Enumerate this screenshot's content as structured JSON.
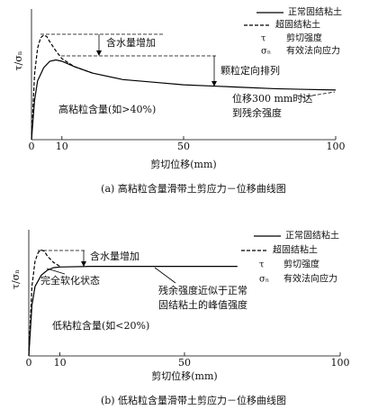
{
  "chart_data": [
    {
      "type": "line",
      "caption": "(a) 高粘粒含量滑带土剪应力－位移曲线图",
      "xlabel": "剪切位移(mm)",
      "ylabel": "τ/σₙ",
      "xlim": [
        0,
        100
      ],
      "xticks": [
        0,
        10,
        50,
        100
      ],
      "ylim": [
        0,
        1
      ],
      "series": [
        {
          "name": "正常固结粘土",
          "color": "#000000",
          "dash": false,
          "x": [
            0,
            1,
            2,
            4,
            6,
            8,
            10,
            14,
            20,
            30,
            40,
            50,
            60,
            70,
            80,
            90,
            100
          ],
          "values": [
            0,
            0.3,
            0.45,
            0.55,
            0.6,
            0.61,
            0.6,
            0.56,
            0.51,
            0.46,
            0.44,
            0.42,
            0.41,
            0.4,
            0.39,
            0.385,
            0.38
          ]
        },
        {
          "name": "超固结粘土",
          "color": "#000000",
          "dash": true,
          "x": [
            0,
            1,
            2,
            3,
            4,
            5,
            6,
            8,
            10,
            14,
            20
          ],
          "values": [
            0,
            0.5,
            0.7,
            0.78,
            0.8,
            0.79,
            0.75,
            0.68,
            0.62,
            0.56,
            0.51
          ]
        }
      ],
      "legend_symbols": [
        {
          "symbol": "τ",
          "text": "剪切强度"
        },
        {
          "symbol": "σₙ",
          "text": "有效法向应力"
        }
      ],
      "annotations": [
        [
          "含水量增加"
        ],
        [
          "颗粒定向排列"
        ],
        [
          "高粘粒含量(如>40%)"
        ],
        [
          "位移300 mm时达",
          "到残余强度"
        ]
      ]
    },
    {
      "type": "line",
      "caption": "(b) 低粘粒含量滑带土剪应力－位移曲线图",
      "xlabel": "剪切位移(mm)",
      "ylabel": "τ/σₙ",
      "xlim": [
        0,
        100
      ],
      "xticks": [
        0,
        10,
        50,
        100
      ],
      "ylim": [
        0,
        1
      ],
      "series": [
        {
          "name": "正常固结粘土",
          "color": "#000000",
          "dash": false,
          "x": [
            0,
            1,
            2,
            4,
            6,
            8,
            10,
            20,
            30,
            40,
            50,
            60,
            67
          ],
          "values": [
            0,
            0.4,
            0.55,
            0.64,
            0.68,
            0.7,
            0.705,
            0.71,
            0.71,
            0.71,
            0.71,
            0.71,
            0.71
          ]
        },
        {
          "name": "超固结粘土",
          "color": "#000000",
          "dash": true,
          "x": [
            0,
            1,
            2,
            3,
            4,
            5,
            6,
            8,
            10
          ],
          "values": [
            0,
            0.55,
            0.75,
            0.82,
            0.84,
            0.83,
            0.79,
            0.74,
            0.71
          ]
        }
      ],
      "legend_symbols": [
        {
          "symbol": "τ",
          "text": "剪切强度"
        },
        {
          "symbol": "σₙ",
          "text": "有效法向应力"
        }
      ],
      "annotations": [
        [
          "含水量增加"
        ],
        [
          "完全软化状态"
        ],
        [
          "残余强度近似于正常",
          "固结粘土的峰值强度"
        ],
        [
          "低粘粒含量(如<20%)"
        ]
      ]
    }
  ]
}
